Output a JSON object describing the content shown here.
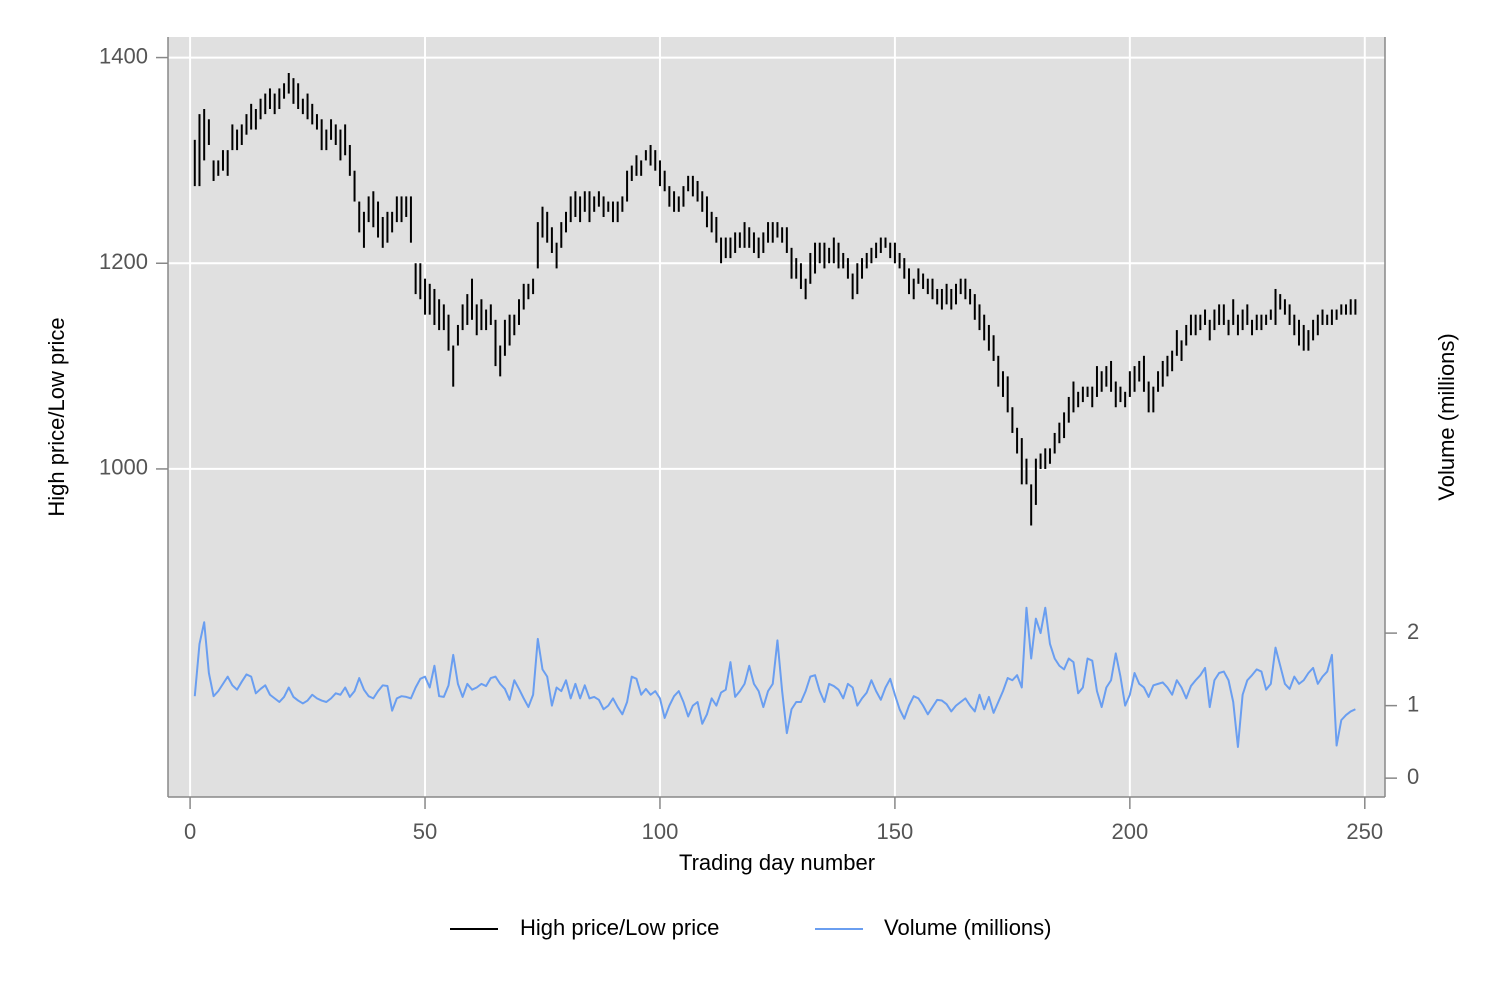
{
  "chart_data": {
    "type": "rspike",
    "x_label": "Trading day number",
    "y_label": "High price/Low price",
    "y2_label": "Volume (millions)",
    "grid": true,
    "legend_position": "bottom",
    "xlim": [
      -4.7,
      254.3
    ],
    "xticks": [
      0,
      50,
      100,
      150,
      200,
      250
    ],
    "ylim": [
      681,
      1420
    ],
    "yticks": [
      1000,
      1200,
      1400
    ],
    "y2lim": [
      -0.26,
      10.22
    ],
    "y2ticks": [
      0,
      1,
      2
    ],
    "x": [
      1,
      2,
      3,
      4,
      5,
      6,
      7,
      8,
      9,
      10,
      11,
      12,
      13,
      14,
      15,
      16,
      17,
      18,
      19,
      20,
      21,
      22,
      23,
      24,
      25,
      26,
      27,
      28,
      29,
      30,
      31,
      32,
      33,
      34,
      35,
      36,
      37,
      38,
      39,
      40,
      41,
      42,
      43,
      44,
      45,
      46,
      47,
      48,
      49,
      50,
      51,
      52,
      53,
      54,
      55,
      56,
      57,
      58,
      59,
      60,
      61,
      62,
      63,
      64,
      65,
      66,
      67,
      68,
      69,
      70,
      71,
      72,
      73,
      74,
      75,
      76,
      77,
      78,
      79,
      80,
      81,
      82,
      83,
      84,
      85,
      86,
      87,
      88,
      89,
      90,
      91,
      92,
      93,
      94,
      95,
      96,
      97,
      98,
      99,
      100,
      101,
      102,
      103,
      104,
      105,
      106,
      107,
      108,
      109,
      110,
      111,
      112,
      113,
      114,
      115,
      116,
      117,
      118,
      119,
      120,
      121,
      122,
      123,
      124,
      125,
      126,
      127,
      128,
      129,
      130,
      131,
      132,
      133,
      134,
      135,
      136,
      137,
      138,
      139,
      140,
      141,
      142,
      143,
      144,
      145,
      146,
      147,
      148,
      149,
      150,
      151,
      152,
      153,
      154,
      155,
      156,
      157,
      158,
      159,
      160,
      161,
      162,
      163,
      164,
      165,
      166,
      167,
      168,
      169,
      170,
      171,
      172,
      173,
      174,
      175,
      176,
      177,
      178,
      179,
      180,
      181,
      182,
      183,
      184,
      185,
      186,
      187,
      188,
      189,
      190,
      191,
      192,
      193,
      194,
      195,
      196,
      197,
      198,
      199,
      200,
      201,
      202,
      203,
      204,
      205,
      206,
      207,
      208,
      209,
      210,
      211,
      212,
      213,
      214,
      215,
      216,
      217,
      218,
      219,
      220,
      221,
      222,
      223,
      224,
      225,
      226,
      227,
      228,
      229,
      230,
      231,
      232,
      233,
      234,
      235,
      236,
      237,
      238,
      239,
      240,
      241,
      242,
      243,
      244,
      245,
      246,
      247,
      248
    ],
    "series": [
      {
        "name": "High price/Low price",
        "type": "rspike",
        "color": "#000000",
        "high": [
          1320,
          1345,
          1350,
          1340,
          1300,
          1300,
          1310,
          1310,
          1335,
          1330,
          1335,
          1345,
          1355,
          1350,
          1360,
          1365,
          1370,
          1365,
          1370,
          1375,
          1385,
          1380,
          1375,
          1360,
          1365,
          1355,
          1345,
          1340,
          1330,
          1340,
          1335,
          1330,
          1335,
          1315,
          1290,
          1260,
          1250,
          1265,
          1270,
          1260,
          1245,
          1250,
          1250,
          1265,
          1265,
          1265,
          1265,
          1200,
          1200,
          1185,
          1180,
          1175,
          1165,
          1160,
          1150,
          1120,
          1140,
          1160,
          1170,
          1185,
          1160,
          1165,
          1155,
          1160,
          1145,
          1120,
          1145,
          1150,
          1150,
          1165,
          1180,
          1180,
          1185,
          1240,
          1255,
          1250,
          1235,
          1220,
          1240,
          1250,
          1265,
          1270,
          1265,
          1270,
          1270,
          1265,
          1270,
          1265,
          1260,
          1260,
          1260,
          1265,
          1290,
          1295,
          1305,
          1300,
          1310,
          1315,
          1310,
          1300,
          1290,
          1275,
          1270,
          1265,
          1275,
          1285,
          1285,
          1280,
          1270,
          1265,
          1250,
          1245,
          1225,
          1225,
          1225,
          1230,
          1230,
          1240,
          1235,
          1230,
          1225,
          1230,
          1240,
          1240,
          1240,
          1235,
          1235,
          1215,
          1205,
          1200,
          1185,
          1210,
          1220,
          1220,
          1220,
          1215,
          1225,
          1220,
          1210,
          1205,
          1190,
          1200,
          1205,
          1210,
          1215,
          1220,
          1225,
          1225,
          1220,
          1220,
          1210,
          1205,
          1195,
          1185,
          1195,
          1190,
          1185,
          1185,
          1175,
          1175,
          1180,
          1175,
          1180,
          1185,
          1185,
          1175,
          1170,
          1160,
          1150,
          1140,
          1130,
          1110,
          1095,
          1090,
          1060,
          1040,
          1030,
          1010,
          985,
          1010,
          1015,
          1020,
          1020,
          1035,
          1045,
          1055,
          1070,
          1085,
          1075,
          1080,
          1080,
          1080,
          1100,
          1095,
          1100,
          1105,
          1085,
          1080,
          1075,
          1095,
          1100,
          1105,
          1110,
          1085,
          1080,
          1095,
          1105,
          1110,
          1115,
          1135,
          1125,
          1140,
          1150,
          1150,
          1150,
          1155,
          1145,
          1155,
          1160,
          1160,
          1145,
          1165,
          1150,
          1155,
          1160,
          1145,
          1150,
          1150,
          1150,
          1155,
          1175,
          1170,
          1165,
          1160,
          1150,
          1145,
          1140,
          1135,
          1145,
          1150,
          1155,
          1150,
          1155,
          1155,
          1160,
          1160,
          1165,
          1165
        ],
        "low": [
          1275,
          1275,
          1300,
          1315,
          1280,
          1285,
          1290,
          1285,
          1310,
          1310,
          1315,
          1325,
          1330,
          1330,
          1340,
          1345,
          1350,
          1345,
          1350,
          1360,
          1365,
          1355,
          1350,
          1345,
          1340,
          1335,
          1330,
          1310,
          1310,
          1320,
          1315,
          1300,
          1305,
          1285,
          1260,
          1230,
          1215,
          1240,
          1235,
          1225,
          1215,
          1220,
          1230,
          1240,
          1240,
          1245,
          1220,
          1170,
          1165,
          1150,
          1150,
          1140,
          1135,
          1135,
          1115,
          1080,
          1120,
          1135,
          1140,
          1145,
          1130,
          1135,
          1135,
          1140,
          1100,
          1090,
          1110,
          1120,
          1130,
          1140,
          1155,
          1165,
          1170,
          1195,
          1225,
          1220,
          1210,
          1195,
          1215,
          1230,
          1240,
          1245,
          1240,
          1250,
          1240,
          1250,
          1255,
          1245,
          1250,
          1240,
          1240,
          1250,
          1260,
          1280,
          1285,
          1285,
          1300,
          1295,
          1290,
          1275,
          1270,
          1255,
          1250,
          1250,
          1255,
          1270,
          1265,
          1260,
          1250,
          1235,
          1230,
          1220,
          1200,
          1205,
          1205,
          1210,
          1215,
          1215,
          1215,
          1210,
          1205,
          1210,
          1220,
          1220,
          1225,
          1220,
          1210,
          1185,
          1185,
          1175,
          1165,
          1180,
          1190,
          1200,
          1195,
          1200,
          1200,
          1195,
          1195,
          1185,
          1165,
          1170,
          1185,
          1195,
          1200,
          1205,
          1210,
          1215,
          1205,
          1200,
          1195,
          1185,
          1170,
          1165,
          1180,
          1175,
          1170,
          1165,
          1160,
          1155,
          1160,
          1155,
          1160,
          1170,
          1165,
          1160,
          1145,
          1135,
          1125,
          1115,
          1105,
          1080,
          1070,
          1055,
          1035,
          1015,
          985,
          985,
          945,
          965,
          1000,
          1000,
          1005,
          1015,
          1025,
          1030,
          1045,
          1055,
          1060,
          1065,
          1070,
          1060,
          1070,
          1075,
          1080,
          1075,
          1060,
          1065,
          1060,
          1070,
          1075,
          1085,
          1075,
          1055,
          1055,
          1075,
          1080,
          1090,
          1095,
          1110,
          1105,
          1120,
          1130,
          1130,
          1135,
          1140,
          1125,
          1135,
          1140,
          1140,
          1130,
          1140,
          1130,
          1135,
          1140,
          1130,
          1135,
          1135,
          1140,
          1145,
          1140,
          1155,
          1150,
          1140,
          1130,
          1120,
          1115,
          1115,
          1125,
          1130,
          1140,
          1140,
          1140,
          1145,
          1150,
          1150,
          1150,
          1150
        ]
      },
      {
        "name": "Volume (millions)",
        "type": "line",
        "color": "#6a9ef0",
        "axis": "y2",
        "values": [
          1.13,
          1.85,
          2.15,
          1.45,
          1.13,
          1.2,
          1.3,
          1.4,
          1.28,
          1.22,
          1.33,
          1.43,
          1.4,
          1.17,
          1.23,
          1.28,
          1.15,
          1.1,
          1.05,
          1.12,
          1.25,
          1.12,
          1.07,
          1.03,
          1.07,
          1.15,
          1.1,
          1.07,
          1.05,
          1.1,
          1.17,
          1.15,
          1.25,
          1.12,
          1.2,
          1.38,
          1.22,
          1.13,
          1.1,
          1.2,
          1.28,
          1.27,
          0.93,
          1.1,
          1.13,
          1.12,
          1.1,
          1.25,
          1.37,
          1.4,
          1.25,
          1.55,
          1.13,
          1.12,
          1.28,
          1.7,
          1.3,
          1.12,
          1.3,
          1.22,
          1.25,
          1.3,
          1.27,
          1.38,
          1.4,
          1.3,
          1.23,
          1.08,
          1.35,
          1.23,
          1.1,
          0.98,
          1.15,
          1.92,
          1.5,
          1.4,
          1.0,
          1.25,
          1.2,
          1.35,
          1.1,
          1.3,
          1.1,
          1.28,
          1.1,
          1.12,
          1.08,
          0.95,
          1.0,
          1.1,
          0.98,
          0.88,
          1.05,
          1.4,
          1.37,
          1.15,
          1.23,
          1.15,
          1.2,
          1.1,
          0.83,
          1.0,
          1.13,
          1.2,
          1.05,
          0.85,
          1.0,
          1.05,
          0.75,
          0.88,
          1.1,
          1.0,
          1.18,
          1.22,
          1.6,
          1.12,
          1.2,
          1.3,
          1.55,
          1.3,
          1.2,
          0.98,
          1.2,
          1.3,
          1.9,
          1.2,
          0.62,
          0.95,
          1.05,
          1.05,
          1.2,
          1.4,
          1.42,
          1.2,
          1.05,
          1.3,
          1.27,
          1.22,
          1.1,
          1.3,
          1.25,
          1.0,
          1.1,
          1.18,
          1.35,
          1.2,
          1.08,
          1.25,
          1.37,
          1.15,
          0.95,
          0.82,
          1.0,
          1.13,
          1.1,
          1.0,
          0.88,
          0.98,
          1.08,
          1.07,
          1.02,
          0.92,
          1.0,
          1.05,
          1.1,
          1.0,
          0.92,
          1.15,
          0.95,
          1.12,
          0.9,
          1.05,
          1.2,
          1.38,
          1.35,
          1.42,
          1.25,
          2.35,
          1.65,
          2.2,
          2.0,
          2.35,
          1.85,
          1.65,
          1.55,
          1.5,
          1.65,
          1.6,
          1.17,
          1.25,
          1.65,
          1.62,
          1.2,
          0.98,
          1.25,
          1.35,
          1.72,
          1.4,
          1.0,
          1.15,
          1.45,
          1.3,
          1.25,
          1.12,
          1.28,
          1.3,
          1.32,
          1.25,
          1.15,
          1.35,
          1.25,
          1.1,
          1.27,
          1.35,
          1.42,
          1.52,
          0.98,
          1.35,
          1.45,
          1.47,
          1.35,
          1.05,
          0.43,
          1.15,
          1.35,
          1.42,
          1.5,
          1.47,
          1.22,
          1.3,
          1.8,
          1.55,
          1.3,
          1.23,
          1.4,
          1.3,
          1.35,
          1.45,
          1.52,
          1.3,
          1.4,
          1.47,
          1.7,
          0.45,
          0.8,
          0.87,
          0.92,
          0.95
        ]
      }
    ]
  }
}
